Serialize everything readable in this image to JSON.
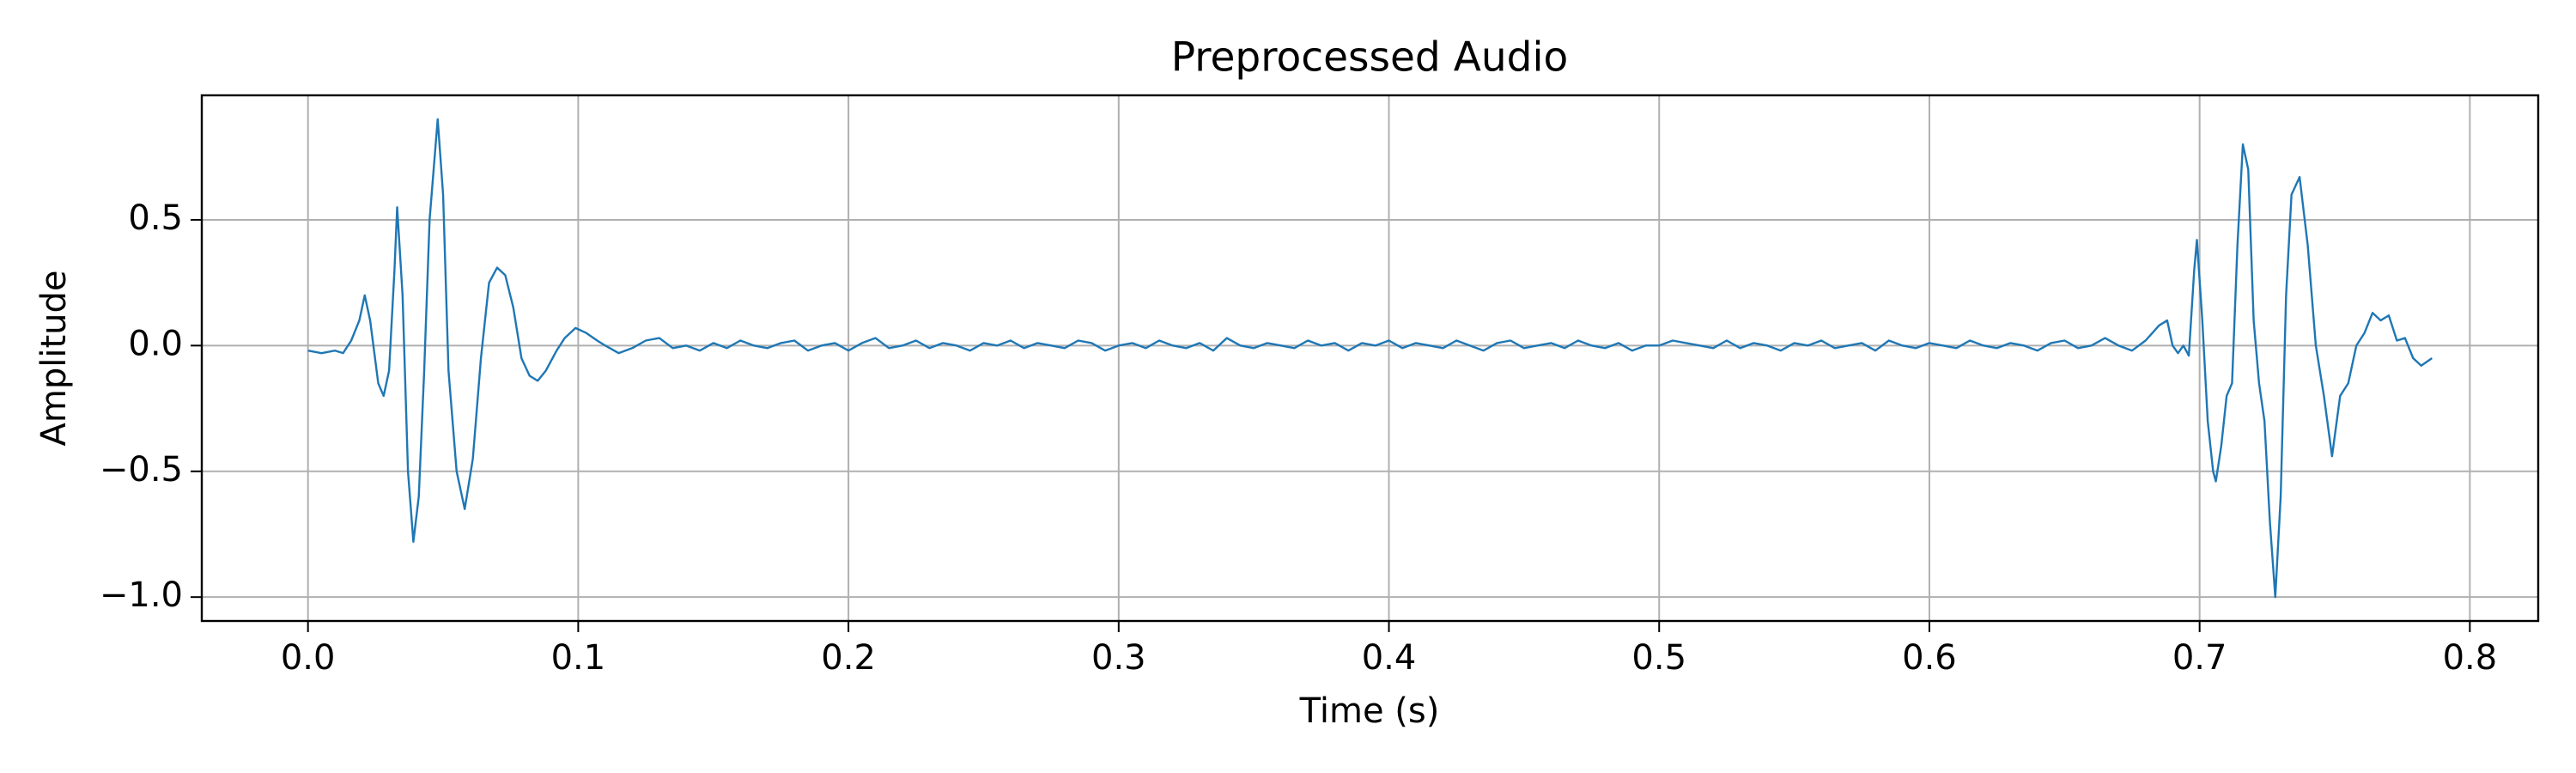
{
  "chart_data": {
    "type": "line",
    "title": "Preprocessed Audio",
    "x_label": "Time (s)",
    "y_label": "Amplitude",
    "xlim": [
      -0.0393,
      0.8253
    ],
    "ylim": [
      -1.095,
      0.995
    ],
    "xticks": [
      {
        "value": 0,
        "label": "0.0"
      },
      {
        "value": 0.1,
        "label": "0.1"
      },
      {
        "value": 0.2,
        "label": "0.2"
      },
      {
        "value": 0.3,
        "label": "0.3"
      },
      {
        "value": 0.4,
        "label": "0.4"
      },
      {
        "value": 0.5,
        "label": "0.5"
      },
      {
        "value": 0.6,
        "label": "0.6"
      },
      {
        "value": 0.7,
        "label": "0.7"
      },
      {
        "value": 0.8,
        "label": "0.8"
      }
    ],
    "yticks": [
      {
        "value": -1,
        "label": "−1.0"
      },
      {
        "value": -0.5,
        "label": "−0.5"
      },
      {
        "value": 0,
        "label": "0.0"
      },
      0.5
    ],
    "grid": true,
    "x": [
      0.0,
      0.005,
      0.01,
      0.013,
      0.016,
      0.019,
      0.021,
      0.023,
      0.026,
      0.028,
      0.03,
      0.032,
      0.033,
      0.035,
      0.037,
      0.039,
      0.041,
      0.043,
      0.045,
      0.048,
      0.05,
      0.052,
      0.055,
      0.058,
      0.061,
      0.064,
      0.067,
      0.07,
      0.073,
      0.076,
      0.079,
      0.082,
      0.085,
      0.088,
      0.092,
      0.095,
      0.099,
      0.103,
      0.107,
      0.11,
      0.115,
      0.12,
      0.125,
      0.13,
      0.135,
      0.14,
      0.145,
      0.15,
      0.155,
      0.16,
      0.165,
      0.17,
      0.175,
      0.18,
      0.185,
      0.19,
      0.195,
      0.2,
      0.205,
      0.21,
      0.215,
      0.22,
      0.225,
      0.23,
      0.235,
      0.24,
      0.245,
      0.25,
      0.255,
      0.26,
      0.265,
      0.27,
      0.275,
      0.28,
      0.285,
      0.29,
      0.295,
      0.3,
      0.305,
      0.31,
      0.315,
      0.32,
      0.325,
      0.33,
      0.335,
      0.34,
      0.345,
      0.35,
      0.355,
      0.36,
      0.365,
      0.37,
      0.375,
      0.38,
      0.385,
      0.39,
      0.395,
      0.4,
      0.405,
      0.41,
      0.415,
      0.42,
      0.425,
      0.43,
      0.435,
      0.44,
      0.445,
      0.45,
      0.455,
      0.46,
      0.465,
      0.47,
      0.475,
      0.48,
      0.485,
      0.49,
      0.495,
      0.5,
      0.505,
      0.51,
      0.515,
      0.52,
      0.525,
      0.53,
      0.535,
      0.54,
      0.545,
      0.55,
      0.555,
      0.56,
      0.565,
      0.57,
      0.575,
      0.58,
      0.585,
      0.59,
      0.595,
      0.6,
      0.605,
      0.61,
      0.615,
      0.62,
      0.625,
      0.63,
      0.635,
      0.64,
      0.645,
      0.65,
      0.655,
      0.66,
      0.665,
      0.67,
      0.675,
      0.68,
      0.685,
      0.688,
      0.69,
      0.692,
      0.694,
      0.696,
      0.698,
      0.699,
      0.701,
      0.703,
      0.705,
      0.706,
      0.708,
      0.71,
      0.712,
      0.714,
      0.716,
      0.718,
      0.72,
      0.722,
      0.724,
      0.726,
      0.728,
      0.73,
      0.732,
      0.734,
      0.737,
      0.74,
      0.743,
      0.746,
      0.749,
      0.752,
      0.755,
      0.758,
      0.761,
      0.764,
      0.767,
      0.77,
      0.773,
      0.776,
      0.779,
      0.782,
      0.786
    ],
    "series": [
      {
        "name": "Amplitude",
        "color": "#1f77b4",
        "values": [
          -0.02,
          -0.03,
          -0.02,
          -0.03,
          0.02,
          0.1,
          0.2,
          0.1,
          -0.15,
          -0.2,
          -0.1,
          0.3,
          0.55,
          0.2,
          -0.5,
          -0.78,
          -0.6,
          -0.1,
          0.5,
          0.9,
          0.6,
          -0.1,
          -0.5,
          -0.65,
          -0.45,
          -0.05,
          0.25,
          0.31,
          0.28,
          0.15,
          -0.05,
          -0.12,
          -0.14,
          -0.1,
          -0.02,
          0.03,
          0.07,
          0.05,
          0.02,
          0.0,
          -0.03,
          -0.01,
          0.02,
          0.03,
          -0.01,
          0.0,
          -0.02,
          0.01,
          -0.01,
          0.02,
          0.0,
          -0.01,
          0.01,
          0.02,
          -0.02,
          0.0,
          0.01,
          -0.02,
          0.01,
          0.03,
          -0.01,
          0.0,
          0.02,
          -0.01,
          0.01,
          0.0,
          -0.02,
          0.01,
          0.0,
          0.02,
          -0.01,
          0.01,
          0.0,
          -0.01,
          0.02,
          0.01,
          -0.02,
          0.0,
          0.01,
          -0.01,
          0.02,
          0.0,
          -0.01,
          0.01,
          -0.02,
          0.03,
          0.0,
          -0.01,
          0.01,
          0.0,
          -0.01,
          0.02,
          0.0,
          0.01,
          -0.02,
          0.01,
          0.0,
          0.02,
          -0.01,
          0.01,
          0.0,
          -0.01,
          0.02,
          0.0,
          -0.02,
          0.01,
          0.02,
          -0.01,
          0.0,
          0.01,
          -0.01,
          0.02,
          0.0,
          -0.01,
          0.01,
          -0.02,
          0.0,
          0.0,
          0.02,
          0.01,
          0.0,
          -0.01,
          0.02,
          -0.01,
          0.01,
          0.0,
          -0.02,
          0.01,
          0.0,
          0.02,
          -0.01,
          0.0,
          0.01,
          -0.02,
          0.02,
          0.0,
          -0.01,
          0.01,
          0.0,
          -0.01,
          0.02,
          0.0,
          -0.01,
          0.01,
          0.0,
          -0.02,
          0.01,
          0.02,
          -0.01,
          0.0,
          0.03,
          0.0,
          -0.02,
          0.02,
          0.08,
          0.1,
          0.0,
          -0.03,
          0.0,
          -0.04,
          0.3,
          0.42,
          0.1,
          -0.3,
          -0.5,
          -0.54,
          -0.4,
          -0.2,
          -0.15,
          0.4,
          0.8,
          0.7,
          0.1,
          -0.15,
          -0.3,
          -0.7,
          -1.0,
          -0.6,
          0.2,
          0.6,
          0.67,
          0.4,
          0.0,
          -0.2,
          -0.44,
          -0.2,
          -0.15,
          0.0,
          0.05,
          0.13,
          0.1,
          0.12,
          0.02,
          0.03,
          -0.05,
          -0.08,
          -0.05
        ]
      }
    ]
  }
}
